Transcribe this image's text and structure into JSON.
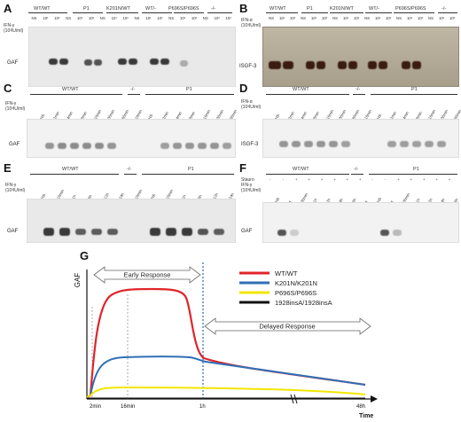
{
  "panels": {
    "A": {
      "letter": "A",
      "groups": [
        "WT/WT",
        "P1",
        "K201N/WT",
        "WT/-",
        "P696S/P696S",
        "-/-"
      ],
      "rowlabel_1": "IFN-γ",
      "rowlabel_2": "(10³IU/ml)",
      "lanes": [
        "NS",
        "10¹",
        "10²",
        "NS",
        "10¹",
        "10²",
        "NS",
        "10¹",
        "10²",
        "NS",
        "10¹",
        "10²",
        "NS",
        "10¹",
        "10²",
        "NS",
        "10¹",
        "10²"
      ],
      "band": "GAF"
    },
    "B": {
      "letter": "B",
      "groups": [
        "WT/WT",
        "P1",
        "K201N/WT",
        "WT/-",
        "P696S/P696S",
        "-/-"
      ],
      "rowlabel_1": "IFN-α",
      "rowlabel_2": "(10³IU/ml)",
      "lanes": [
        "NS",
        "10¹",
        "10²",
        "NS",
        "10¹",
        "10²",
        "NS",
        "10¹",
        "10²",
        "NS",
        "10¹",
        "10²",
        "NS",
        "10¹",
        "10²",
        "NS",
        "10¹",
        "10²"
      ],
      "band": "ISGF-3"
    },
    "C": {
      "letter": "C",
      "groups": [
        "WT/WT",
        "-/-",
        "P1"
      ],
      "rowlabel_1": "IFN-γ",
      "rowlabel_2": "(10³IU/ml)",
      "lanes": [
        "NS",
        "2min",
        "4min",
        "8min",
        "16min",
        "30min",
        "60min",
        "16min",
        "NS",
        "2min",
        "4min",
        "8min",
        "16min",
        "30min",
        "60min"
      ],
      "band": "GAF"
    },
    "D": {
      "letter": "D",
      "groups": [
        "WT/WT",
        "-/-",
        "P1"
      ],
      "rowlabel_1": "IFN-α",
      "rowlabel_2": "(10³IU/ml)",
      "lanes": [
        "NS",
        "2min",
        "4min",
        "8min",
        "16min",
        "30min",
        "60min",
        "16min",
        "NS",
        "2min",
        "4min",
        "8min",
        "16min",
        "30min",
        "60min"
      ],
      "band": "ISGF-3"
    },
    "E": {
      "letter": "E",
      "groups": [
        "WT/WT",
        "-/-",
        "P1"
      ],
      "rowlabel_1": "IFN-γ",
      "rowlabel_2": "(10³IU/ml)",
      "lanes": [
        "NS",
        "16min",
        "1h",
        "6h",
        "12h",
        "24h",
        "16min",
        "NS",
        "16min",
        "1h",
        "6h",
        "12h",
        "24h"
      ],
      "band": "GAF"
    },
    "F": {
      "letter": "F",
      "groups": [
        "WT/WT",
        "-/-",
        "P1"
      ],
      "stauro_label": "Stauro",
      "rowlabel_1": "IFN-γ",
      "rowlabel_2": "(10³IU/ml)",
      "stauro": [
        "-",
        "-",
        "+",
        "+",
        "+",
        "+",
        "+",
        "+",
        "-",
        "-",
        "+",
        "+",
        "+",
        "+",
        "+"
      ],
      "lanes": [
        "NS",
        "s",
        "30min",
        "1h",
        "2h",
        "4h",
        "6h",
        "s",
        "NS",
        "s",
        "30min",
        "1h",
        "2h",
        "4h",
        "6h"
      ],
      "band": "GAF"
    }
  },
  "panel_G": {
    "letter": "G",
    "ylabel": "GAF",
    "xlabel": "Time",
    "early": "Early Response",
    "delayed": "Delayed Response",
    "ticks": [
      "2min",
      "16min",
      "1h",
      "48h"
    ],
    "legend": [
      {
        "name": "WT/WT",
        "color": "#e0242a"
      },
      {
        "name": "K201N/K201N",
        "color": "#2f6fb6"
      },
      {
        "name": "P696S/P696S",
        "color": "#f2e600"
      },
      {
        "name": "1928insA/1928insA",
        "color": "#111111"
      }
    ]
  }
}
